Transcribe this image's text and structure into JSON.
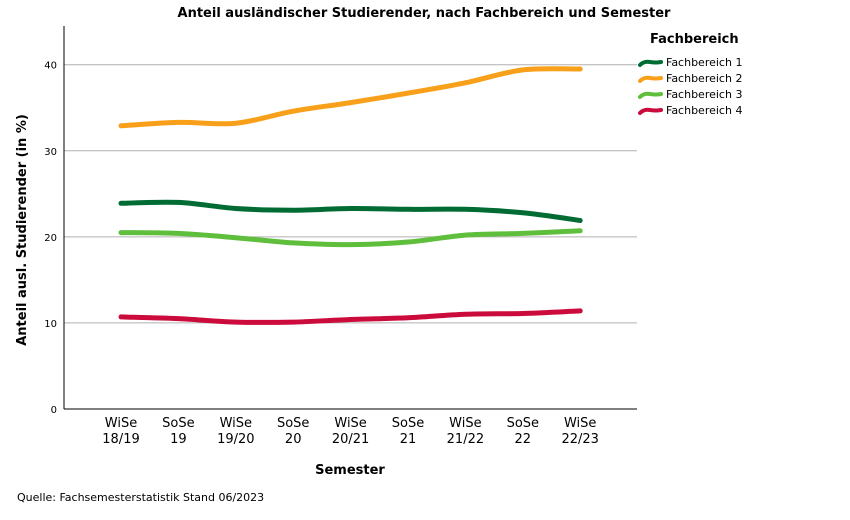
{
  "chart_data": {
    "type": "line",
    "title": "Anteil ausländischer Studierender, nach Fachbereich und Semester",
    "xlabel": "Semester",
    "ylabel": "Anteil ausl. Studierender (in %)",
    "categories": [
      [
        "WiSe",
        "18/19"
      ],
      [
        "SoSe",
        "19"
      ],
      [
        "WiSe",
        "19/20"
      ],
      [
        "SoSe",
        "20"
      ],
      [
        "WiSe",
        "20/21"
      ],
      [
        "SoSe",
        "21"
      ],
      [
        "WiSe",
        "21/22"
      ],
      [
        "SoSe",
        "22"
      ],
      [
        "WiSe",
        "22/23"
      ]
    ],
    "ylim": [
      0,
      44.5
    ],
    "yticks": [
      0,
      10,
      20,
      30,
      40
    ],
    "grid": true,
    "legend": {
      "title": "Fachbereich",
      "placement": "right"
    },
    "series": [
      {
        "name": "Fachbereich 1",
        "color": "#006b33",
        "values": [
          23.9,
          24.0,
          23.3,
          23.1,
          23.3,
          23.2,
          23.2,
          22.8,
          21.9
        ]
      },
      {
        "name": "Fachbereich 2",
        "color": "#f9a01b",
        "values": [
          32.9,
          33.3,
          33.2,
          34.6,
          35.6,
          36.7,
          37.9,
          39.4,
          39.5
        ]
      },
      {
        "name": "Fachbereich 3",
        "color": "#5fbf3c",
        "values": [
          20.5,
          20.4,
          19.9,
          19.3,
          19.1,
          19.4,
          20.2,
          20.4,
          20.7
        ]
      },
      {
        "name": "Fachbereich 4",
        "color": "#cc0b3d",
        "values": [
          10.7,
          10.5,
          10.1,
          10.1,
          10.4,
          10.6,
          11.0,
          11.1,
          11.4
        ]
      }
    ],
    "footnote": "Quelle: Fachsemesterstatistik Stand 06/2023"
  }
}
